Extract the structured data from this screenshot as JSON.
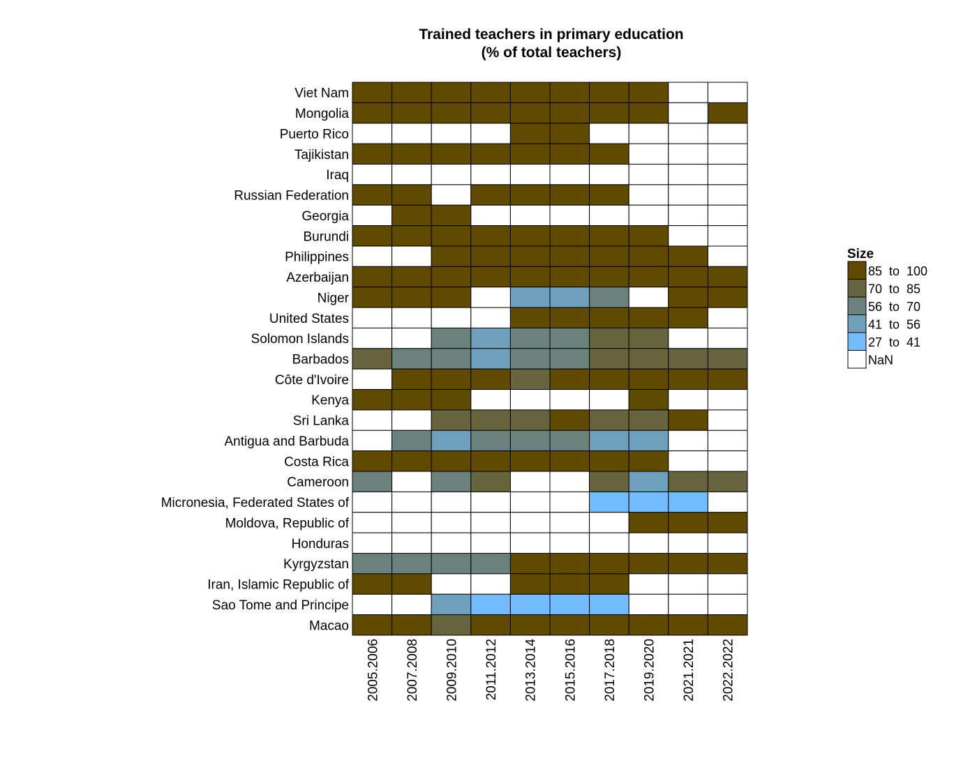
{
  "chart_data": {
    "type": "heatmap",
    "title": [
      "Trained teachers in primary education",
      "(% of total teachers)"
    ],
    "x_categories": [
      "2005.2006",
      "2007.2008",
      "2009.2010",
      "2011.2012",
      "2013.2014",
      "2015.2016",
      "2017.2018",
      "2019.2020",
      "2021.2021",
      "2022.2022"
    ],
    "y_categories": [
      "Viet Nam",
      "Mongolia",
      "Puerto Rico",
      "Tajikistan",
      "Iraq",
      "Russian Federation",
      "Georgia",
      "Burundi",
      "Philippines",
      "Azerbaijan",
      "Niger",
      "United States",
      "Solomon Islands",
      "Barbados",
      "Côte d'Ivoire",
      "Kenya",
      "Sri Lanka",
      "Antigua and Barbuda",
      "Costa Rica",
      "Cameroon",
      "Micronesia, Federated States of",
      "Moldova, Republic of",
      "Honduras",
      "Kyrgyzstan",
      "Iran, Islamic Republic of",
      "Sao Tome and Principe",
      "Macao"
    ],
    "values": [
      [
        99,
        99,
        99,
        99,
        99,
        99,
        99,
        99,
        null,
        null
      ],
      [
        96,
        96,
        96,
        96,
        96,
        96,
        96,
        96,
        null,
        96
      ],
      [
        null,
        null,
        null,
        null,
        95,
        95,
        null,
        null,
        null,
        null
      ],
      [
        93,
        93,
        93,
        93,
        93,
        93,
        93,
        null,
        null,
        null
      ],
      [
        null,
        null,
        null,
        null,
        null,
        null,
        null,
        null,
        null,
        null
      ],
      [
        98,
        98,
        null,
        98,
        98,
        98,
        98,
        null,
        null,
        null
      ],
      [
        null,
        95,
        95,
        null,
        null,
        null,
        null,
        null,
        null,
        null
      ],
      [
        99,
        99,
        99,
        99,
        99,
        99,
        99,
        99,
        null,
        null
      ],
      [
        null,
        null,
        99,
        99,
        99,
        99,
        99,
        99,
        99,
        null
      ],
      [
        99,
        99,
        99,
        99,
        99,
        99,
        99,
        99,
        99,
        99
      ],
      [
        97,
        97,
        97,
        null,
        50,
        50,
        65,
        null,
        97,
        97
      ],
      [
        null,
        null,
        null,
        null,
        99,
        99,
        99,
        99,
        99,
        null
      ],
      [
        null,
        null,
        62,
        48,
        62,
        62,
        77,
        77,
        null,
        null
      ],
      [
        78,
        62,
        62,
        48,
        62,
        62,
        78,
        78,
        78,
        78
      ],
      [
        null,
        90,
        90,
        90,
        78,
        90,
        90,
        90,
        90,
        90
      ],
      [
        97,
        97,
        97,
        null,
        null,
        null,
        null,
        97,
        null,
        null
      ],
      [
        null,
        null,
        80,
        80,
        80,
        86,
        80,
        80,
        86,
        null
      ],
      [
        null,
        62,
        50,
        62,
        62,
        62,
        50,
        50,
        null,
        null
      ],
      [
        95,
        95,
        95,
        95,
        95,
        95,
        95,
        95,
        null,
        null
      ],
      [
        62,
        null,
        62,
        77,
        null,
        null,
        77,
        50,
        77,
        77
      ],
      [
        null,
        null,
        null,
        null,
        null,
        null,
        35,
        35,
        35,
        null
      ],
      [
        null,
        null,
        null,
        null,
        null,
        null,
        null,
        99,
        99,
        99
      ],
      [
        null,
        null,
        null,
        null,
        null,
        null,
        null,
        null,
        null,
        null
      ],
      [
        65,
        65,
        65,
        65,
        88,
        88,
        88,
        88,
        88,
        88
      ],
      [
        99,
        99,
        null,
        null,
        99,
        99,
        99,
        null,
        null,
        null
      ],
      [
        null,
        null,
        50,
        35,
        35,
        35,
        35,
        null,
        null,
        null
      ],
      [
        93,
        93,
        80,
        93,
        93,
        93,
        93,
        93,
        93,
        93
      ]
    ],
    "legend": {
      "title": "Size",
      "placement": "right",
      "bins": [
        {
          "from": "85",
          "to": "100",
          "label": "85  to  100",
          "min": 85,
          "max": 100,
          "color": "#604a00"
        },
        {
          "from": "70",
          "to": "85",
          "label": "70  to  85",
          "min": 70,
          "max": 85,
          "color": "#66653e"
        },
        {
          "from": "56",
          "to": "70",
          "label": "56  to  70",
          "min": 56,
          "max": 70,
          "color": "#6a827b"
        },
        {
          "from": "41",
          "to": "56",
          "label": "41  to  56",
          "min": 41,
          "max": 56,
          "color": "#6e9fbb"
        },
        {
          "from": "27",
          "to": "41",
          "label": "27  to  41",
          "min": 27,
          "max": 41,
          "color": "#73bcfe"
        }
      ],
      "nan": {
        "label": "NaN",
        "color": "#ffffff"
      }
    }
  }
}
